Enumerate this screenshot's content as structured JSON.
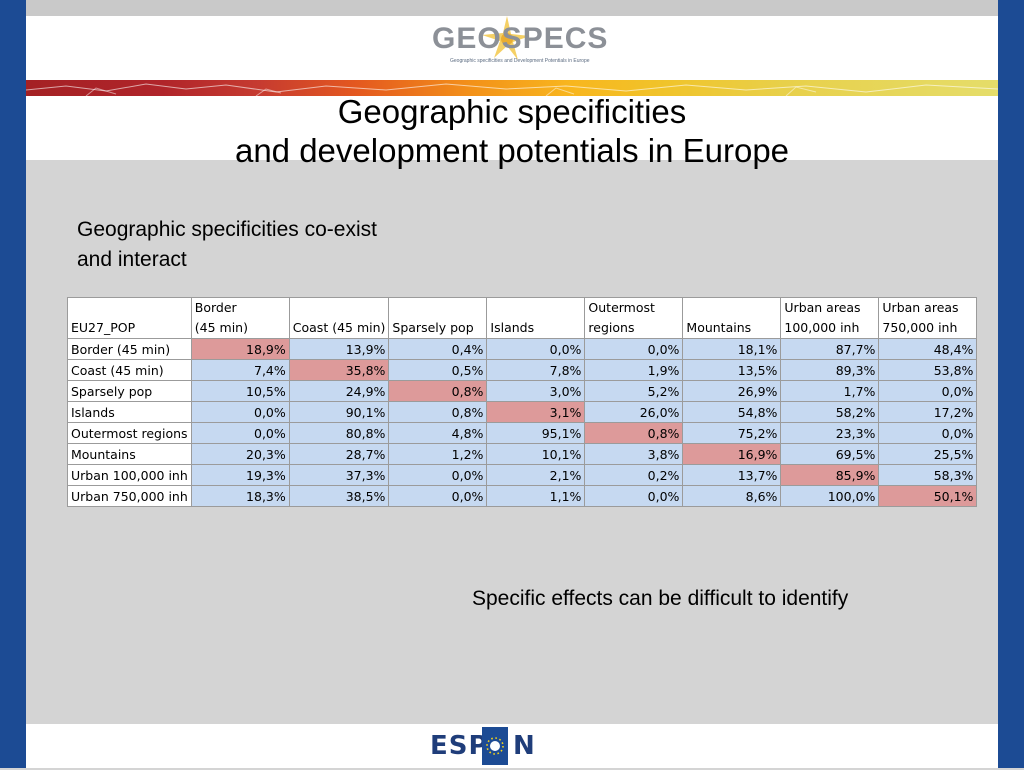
{
  "header": {
    "logo_text": "GEOSPECS",
    "logo_tagline": "Geographic specificities and Development Potentials in Europe",
    "title_line1": "Geographic specificities",
    "title_line2": "and development potentials in Europe"
  },
  "body": {
    "subtitle_line1": "Geographic specificities co-exist",
    "subtitle_line2": "and interact",
    "note": "Specific effects can be difficult to identify"
  },
  "table": {
    "corner": "EU27_POP",
    "columns": [
      [
        "Border",
        "(45 min)"
      ],
      [
        "",
        "Coast (45 min)"
      ],
      [
        "",
        "Sparsely pop"
      ],
      [
        "",
        "Islands"
      ],
      [
        "Outermost",
        "regions"
      ],
      [
        "",
        "Mountains"
      ],
      [
        "Urban areas",
        "100,000 inh"
      ],
      [
        "Urban areas",
        "750,000 inh"
      ]
    ],
    "rows": [
      {
        "label": "Border (45 min)",
        "values": [
          "18,9%",
          "13,9%",
          "0,4%",
          "0,0%",
          "0,0%",
          "18,1%",
          "87,7%",
          "48,4%"
        ]
      },
      {
        "label": "Coast (45 min)",
        "values": [
          "7,4%",
          "35,8%",
          "0,5%",
          "7,8%",
          "1,9%",
          "13,5%",
          "89,3%",
          "53,8%"
        ]
      },
      {
        "label": "Sparsely pop",
        "values": [
          "10,5%",
          "24,9%",
          "0,8%",
          "3,0%",
          "5,2%",
          "26,9%",
          "1,7%",
          "0,0%"
        ]
      },
      {
        "label": "Islands",
        "values": [
          "0,0%",
          "90,1%",
          "0,8%",
          "3,1%",
          "26,0%",
          "54,8%",
          "58,2%",
          "17,2%"
        ]
      },
      {
        "label": "Outermost regions",
        "values": [
          "0,0%",
          "80,8%",
          "4,8%",
          "95,1%",
          "0,8%",
          "75,2%",
          "23,3%",
          "0,0%"
        ]
      },
      {
        "label": "Mountains",
        "values": [
          "20,3%",
          "28,7%",
          "1,2%",
          "10,1%",
          "3,8%",
          "16,9%",
          "69,5%",
          "25,5%"
        ]
      },
      {
        "label": "Urban 100,000 inh",
        "values": [
          "19,3%",
          "37,3%",
          "0,0%",
          "2,1%",
          "0,2%",
          "13,7%",
          "85,9%",
          "58,3%"
        ]
      },
      {
        "label": "Urban 750,000 inh",
        "values": [
          "18,3%",
          "38,5%",
          "0,0%",
          "1,1%",
          "0,0%",
          "8,6%",
          "100,0%",
          "50,1%"
        ]
      }
    ]
  },
  "footer": {
    "logo_text_left": "ESP",
    "logo_text_right": "N"
  },
  "colors": {
    "side_bar": "#1c4b94",
    "cell_blue": "#c6d9f1",
    "cell_highlight": "#dd9a9a"
  }
}
